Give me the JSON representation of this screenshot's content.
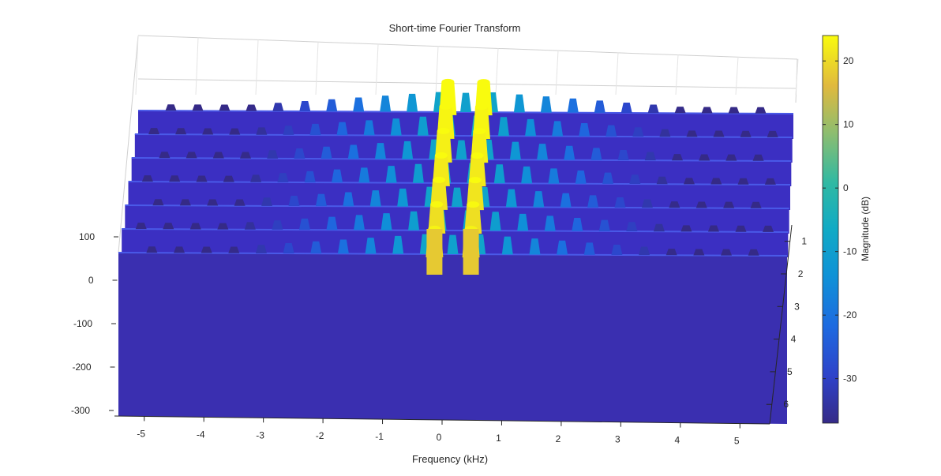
{
  "chart_data": {
    "type": "surface",
    "title": "Short-time Fourier Transform",
    "xlabel": "Frequency (kHz)",
    "ylabel": "",
    "zlabel": "",
    "colorbar_label": "Magnitude (dB)",
    "x_ticks": [
      "-5",
      "-4",
      "-3",
      "-2",
      "-1",
      "0",
      "1",
      "2",
      "3",
      "4",
      "5"
    ],
    "y_ticks": [
      "1",
      "2",
      "3",
      "4",
      "5",
      "6"
    ],
    "z_ticks": [
      "100",
      "0",
      "-100",
      "-200",
      "-300"
    ],
    "colorbar_ticks": [
      "20",
      "10",
      "0",
      "-10",
      "-20",
      "-30"
    ],
    "xlim": [
      -5.5,
      5.5
    ],
    "ylim": [
      0.5,
      6.6
    ],
    "zlim": [
      -300,
      150
    ],
    "clim": [
      -37,
      24
    ],
    "colormap": "parula",
    "peak_frequencies_khz": [
      -0.3,
      0.3
    ],
    "peak_magnitude_db": 24,
    "floor_magnitude_db": -37,
    "num_time_slices": 7
  }
}
